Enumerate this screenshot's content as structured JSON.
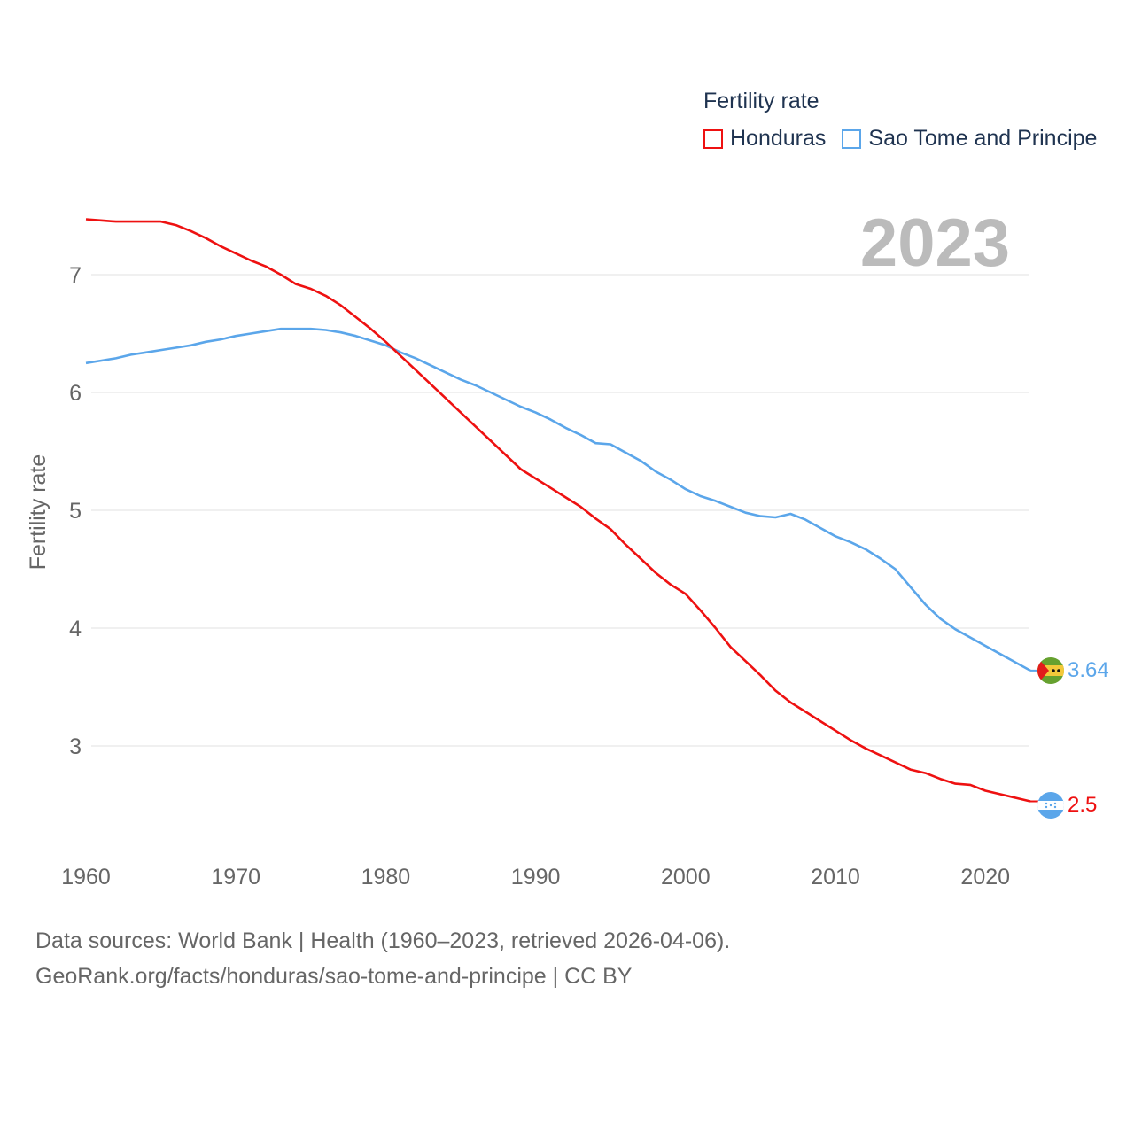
{
  "chart_data": {
    "type": "line",
    "title": "Fertility rate",
    "ylabel": "Fertility rate",
    "xlabel": "",
    "year_label": "2023",
    "xlim": [
      1960,
      2023
    ],
    "ylim": [
      2.3,
      7.7
    ],
    "x_ticks": [
      1960,
      1970,
      1980,
      1990,
      2000,
      2010,
      2020
    ],
    "x_tick_labels": [
      "1960",
      "1970",
      "1980",
      "1990",
      "2000",
      "2010",
      "2020"
    ],
    "y_ticks": [
      3,
      4,
      5,
      6,
      7
    ],
    "y_tick_labels": [
      "3",
      "4",
      "5",
      "6",
      "7"
    ],
    "legend_title": "Fertility rate",
    "legend_position": "top-right",
    "x": [
      1960,
      1961,
      1962,
      1963,
      1964,
      1965,
      1966,
      1967,
      1968,
      1969,
      1970,
      1971,
      1972,
      1973,
      1974,
      1975,
      1976,
      1977,
      1978,
      1979,
      1980,
      1981,
      1982,
      1983,
      1984,
      1985,
      1986,
      1987,
      1988,
      1989,
      1990,
      1991,
      1992,
      1993,
      1994,
      1995,
      1996,
      1997,
      1998,
      1999,
      2000,
      2001,
      2002,
      2003,
      2004,
      2005,
      2006,
      2007,
      2008,
      2009,
      2010,
      2011,
      2012,
      2013,
      2014,
      2015,
      2016,
      2017,
      2018,
      2019,
      2020,
      2021,
      2022,
      2023
    ],
    "series": [
      {
        "name": "Honduras",
        "color": "#ee1111",
        "end_label": "2.5",
        "values": [
          7.47,
          7.46,
          7.45,
          7.45,
          7.45,
          7.45,
          7.42,
          7.37,
          7.31,
          7.24,
          7.18,
          7.12,
          7.07,
          7.0,
          6.92,
          6.88,
          6.82,
          6.74,
          6.64,
          6.54,
          6.43,
          6.31,
          6.19,
          6.07,
          5.95,
          5.83,
          5.71,
          5.59,
          5.47,
          5.35,
          5.27,
          5.19,
          5.11,
          5.03,
          4.93,
          4.84,
          4.71,
          4.59,
          4.47,
          4.37,
          4.29,
          4.15,
          4.0,
          3.84,
          3.72,
          3.6,
          3.47,
          3.37,
          3.29,
          3.21,
          3.13,
          3.05,
          2.98,
          2.92,
          2.86,
          2.8,
          2.77,
          2.72,
          2.68,
          2.67,
          2.62,
          2.59,
          2.56,
          2.53
        ]
      },
      {
        "name": "Sao Tome and Principe",
        "color": "#5ba6ea",
        "end_label": "3.64",
        "values": [
          6.25,
          6.27,
          6.29,
          6.32,
          6.34,
          6.36,
          6.38,
          6.4,
          6.43,
          6.45,
          6.48,
          6.5,
          6.52,
          6.54,
          6.54,
          6.54,
          6.53,
          6.51,
          6.48,
          6.44,
          6.4,
          6.34,
          6.29,
          6.23,
          6.17,
          6.11,
          6.06,
          6.0,
          5.94,
          5.88,
          5.83,
          5.77,
          5.7,
          5.64,
          5.57,
          5.56,
          5.49,
          5.42,
          5.33,
          5.26,
          5.18,
          5.12,
          5.08,
          5.03,
          4.98,
          4.95,
          4.94,
          4.97,
          4.92,
          4.85,
          4.78,
          4.73,
          4.67,
          4.59,
          4.5,
          4.35,
          4.2,
          4.08,
          3.99,
          3.92,
          3.85,
          3.78,
          3.71,
          3.64
        ]
      }
    ]
  },
  "source": {
    "line1": "Data sources: World Bank | Health (1960–2023, retrieved 2026-04-06).",
    "line2": "GeoRank.org/facts/honduras/sao-tome-and-principe | CC BY"
  }
}
